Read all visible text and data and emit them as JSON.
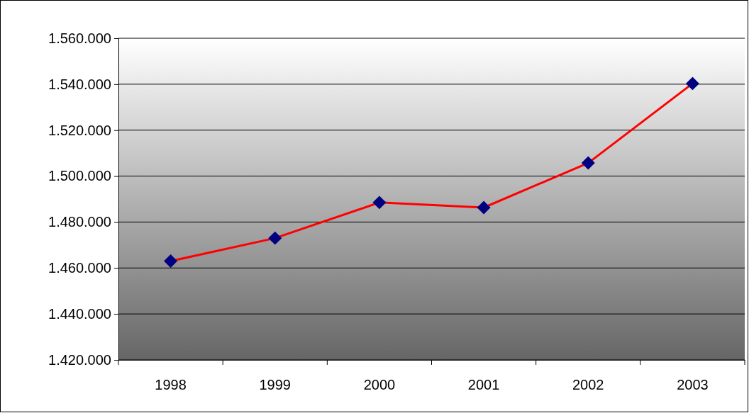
{
  "chart_data": {
    "type": "line",
    "categories": [
      "1998",
      "1999",
      "2000",
      "2001",
      "2002",
      "2003"
    ],
    "series": [
      {
        "color": "#ff0000",
        "values": [
          1463000,
          1473000,
          1488500,
          1486300,
          1505700,
          1540300
        ]
      }
    ],
    "ylim": [
      1420000,
      1560000
    ],
    "yticks": [
      {
        "value": 1420000,
        "label": "1.420.000"
      },
      {
        "value": 1440000,
        "label": "1.440.000"
      },
      {
        "value": 1460000,
        "label": "1.460.000"
      },
      {
        "value": 1480000,
        "label": "1.480.000"
      },
      {
        "value": 1500000,
        "label": "1.500.000"
      },
      {
        "value": 1520000,
        "label": "1.520.000"
      },
      {
        "value": 1540000,
        "label": "1.540.000"
      },
      {
        "value": 1560000,
        "label": "1.560.000"
      }
    ],
    "grid": "y",
    "marker": "diamond",
    "line_style": "solid"
  }
}
